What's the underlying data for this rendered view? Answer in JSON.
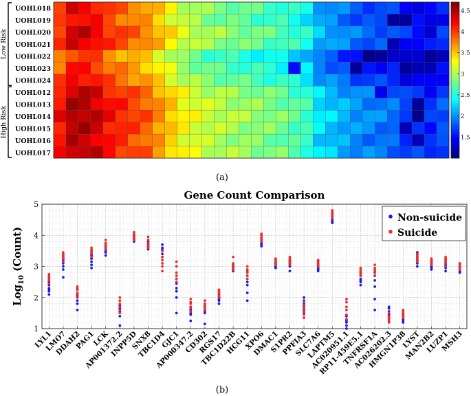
{
  "chart_data": [
    {
      "type": "heatmap",
      "panel_label": "(a)",
      "rows": [
        "UOHL018",
        "UOHL019",
        "UOHL020",
        "UOHL021",
        "UOHL022",
        "UOHL023",
        "UOHL024",
        "UOHL012",
        "UOHL013",
        "UOHL014",
        "UOHL015",
        "UOHL016",
        "UOHL017"
      ],
      "groups": [
        {
          "label": "Low Risk",
          "rows": [
            "UOHL018",
            "UOHL019",
            "UOHL020",
            "UOHL021",
            "UOHL022",
            "UOHL023",
            "UOHL024"
          ]
        },
        {
          "label": "High Risk",
          "rows": [
            "UOHL012",
            "UOHL013",
            "UOHL014",
            "UOHL015",
            "UOHL016",
            "UOHL017"
          ]
        }
      ],
      "n_columns": 32,
      "colorbar": {
        "ticks": [
          "1.5",
          "2",
          "2.5",
          "3",
          "3.5",
          "4",
          "4.5"
        ],
        "range": [
          1.0,
          4.7
        ]
      },
      "column_profile": [
        4.0,
        4.3,
        4.3,
        4.2,
        4.0,
        3.9,
        3.8,
        3.7,
        3.5,
        3.3,
        3.1,
        3.0,
        2.9,
        2.85,
        2.8,
        2.75,
        2.7,
        2.65,
        2.6,
        2.5,
        2.4,
        2.1,
        2.0,
        1.9,
        1.8,
        1.75,
        1.7,
        1.65,
        1.5,
        1.45,
        1.4,
        1.55
      ],
      "row_offsets": [
        0.0,
        -0.05,
        0.1,
        0.05,
        -0.25,
        -0.15,
        -0.05,
        0.15,
        0.2,
        0.25,
        0.2,
        0.15,
        0.2
      ],
      "low_spots": [
        [
          4,
          25,
          1.05
        ],
        [
          4,
          26,
          1.1
        ],
        [
          5,
          24,
          1.1
        ],
        [
          5,
          28,
          1.1
        ],
        [
          1,
          27,
          1.1
        ],
        [
          1,
          28,
          1.1
        ],
        [
          3,
          27,
          1.2
        ],
        [
          8,
          29,
          1.1
        ],
        [
          9,
          29,
          1.05
        ],
        [
          10,
          28,
          1.2
        ],
        [
          11,
          29,
          1.2
        ],
        [
          5,
          19,
          1.5
        ],
        [
          7,
          26,
          1.4
        ],
        [
          2,
          30,
          1.3
        ]
      ]
    },
    {
      "type": "scatter",
      "panel_label": "(b)",
      "title": "Gene Count Comparison",
      "ylabel": "Log10 (Count)",
      "ylabel_main": "Log",
      "ylabel_sub": "10",
      "ylabel_rest": " (Count)",
      "ylim": [
        1,
        5
      ],
      "yticks": [
        "1",
        "2",
        "3",
        "4",
        "5"
      ],
      "legend": {
        "position": "top-right",
        "entries": [
          {
            "name": "Non-suicide",
            "color": "#1c1ce6"
          },
          {
            "name": "Suicide",
            "color": "#e63030"
          }
        ]
      },
      "categories": [
        "LYL1",
        "LMO7",
        "DDAH2",
        "PAG1",
        "LCK",
        "AP001372.2",
        "INPP5D",
        "SNX8",
        "TBC1D4",
        "GJC1",
        "AP000347.2",
        "CD302",
        "RGS17",
        "TBC1D22B",
        "HCG11",
        "XPO6",
        "DMAC1",
        "S1PR2",
        "PPFIA3",
        "SLC7A6",
        "LAPTM5",
        "AC020951.1",
        "RP11-459E5.1",
        "TNFRSF1A",
        "AC026202.3",
        "HMGN1P38",
        "LYST",
        "MAN2B2",
        "LUZP1",
        "MSH3"
      ],
      "series": [
        {
          "name": "Non-suicide",
          "values": [
            [
              2.1,
              2.2,
              2.25,
              2.3,
              2.4,
              2.5
            ],
            [
              2.65,
              2.9,
              3.0,
              3.1,
              3.2,
              3.25
            ],
            [
              1.6,
              1.8,
              1.9,
              2.0,
              2.05,
              2.1
            ],
            [
              2.95,
              3.05,
              3.15,
              3.25,
              3.35,
              3.4
            ],
            [
              3.35,
              3.45,
              3.5,
              3.55,
              3.6,
              3.65
            ],
            [
              1.1,
              1.4,
              1.55,
              1.65,
              1.7,
              1.75
            ],
            [
              3.8,
              3.85,
              3.9,
              3.9,
              3.95,
              4.0
            ],
            [
              3.55,
              3.6,
              3.65,
              3.7,
              3.75,
              3.8
            ],
            [
              3.3,
              3.4,
              3.5,
              3.55,
              3.6,
              3.7
            ],
            [
              1.5,
              2.0,
              2.2,
              2.3,
              2.45,
              2.6
            ],
            [
              1.25,
              1.45,
              1.5,
              1.6,
              1.65,
              1.7
            ],
            [
              1.15,
              1.5,
              1.55,
              1.6,
              1.7,
              1.8
            ],
            [
              1.8,
              1.9,
              1.95,
              2.0,
              2.05,
              2.1
            ],
            [
              2.85,
              2.9,
              2.95,
              3.0,
              3.0,
              3.05
            ],
            [
              1.9,
              2.15,
              2.4,
              2.5,
              2.6,
              2.7
            ],
            [
              3.65,
              3.7,
              3.75,
              3.8,
              3.85,
              3.9
            ],
            [
              2.95,
              3.0,
              3.05,
              3.05,
              3.1,
              3.1
            ],
            [
              2.85,
              3.0,
              3.05,
              3.1,
              3.15,
              3.2
            ],
            [
              1.5,
              1.6,
              1.7,
              1.8,
              1.9,
              2.0
            ],
            [
              2.85,
              2.9,
              2.95,
              3.0,
              3.05,
              3.1
            ],
            [
              4.4,
              4.45,
              4.5,
              4.55,
              4.6,
              4.65
            ],
            [
              1.0,
              1.1,
              1.2,
              1.25,
              1.3,
              1.4
            ],
            [
              2.4,
              2.5,
              2.55,
              2.6,
              2.7,
              2.8
            ],
            [
              1.6,
              1.95,
              2.35,
              2.55,
              2.7,
              2.8
            ],
            [
              1.35,
              1.4,
              1.45,
              1.55,
              1.65,
              1.7
            ],
            [
              1.2,
              1.25,
              1.3,
              1.35,
              1.4,
              1.45
            ],
            [
              3.0,
              3.1,
              3.2,
              3.3,
              3.4,
              3.45
            ],
            [
              2.9,
              2.95,
              3.0,
              3.05,
              3.1,
              3.15
            ],
            [
              2.85,
              2.95,
              3.0,
              3.05,
              3.1,
              3.2
            ],
            [
              2.8,
              2.85,
              2.9,
              2.95,
              3.0,
              3.0
            ]
          ]
        },
        {
          "name": "Suicide",
          "values": [
            [
              2.45,
              2.55,
              2.6,
              2.65,
              2.7,
              2.75
            ],
            [
              3.15,
              3.25,
              3.3,
              3.35,
              3.4,
              3.45
            ],
            [
              2.0,
              2.1,
              2.15,
              2.25,
              2.3,
              2.35
            ],
            [
              3.3,
              3.4,
              3.45,
              3.5,
              3.55,
              3.6
            ],
            [
              3.55,
              3.6,
              3.65,
              3.7,
              3.75,
              3.85
            ],
            [
              1.5,
              1.6,
              1.7,
              1.8,
              1.9,
              2.0
            ],
            [
              3.85,
              3.9,
              3.95,
              4.0,
              4.05,
              4.1
            ],
            [
              3.6,
              3.65,
              3.7,
              3.75,
              3.85,
              3.95
            ],
            [
              2.85,
              3.0,
              3.1,
              3.2,
              3.3,
              3.5
            ],
            [
              2.5,
              2.6,
              2.7,
              2.8,
              3.0,
              3.15
            ],
            [
              1.55,
              1.65,
              1.7,
              1.8,
              1.85,
              1.95
            ],
            [
              1.6,
              1.65,
              1.7,
              1.75,
              1.8,
              1.9
            ],
            [
              2.0,
              2.05,
              2.1,
              2.15,
              2.2,
              2.25
            ],
            [
              2.9,
              2.95,
              3.0,
              3.05,
              3.1,
              3.3
            ],
            [
              2.6,
              2.7,
              2.8,
              2.85,
              2.9,
              3.0
            ],
            [
              3.8,
              3.85,
              3.9,
              3.95,
              4.0,
              4.05
            ],
            [
              3.05,
              3.1,
              3.15,
              3.2,
              3.2,
              3.25
            ],
            [
              3.05,
              3.1,
              3.15,
              3.2,
              3.25,
              3.3
            ],
            [
              1.35,
              1.45,
              1.55,
              1.65,
              1.75,
              1.85
            ],
            [
              3.0,
              3.05,
              3.1,
              3.15,
              3.15,
              3.2
            ],
            [
              4.55,
              4.6,
              4.65,
              4.7,
              4.75,
              4.8
            ],
            [
              1.3,
              1.45,
              1.6,
              1.7,
              1.85,
              1.95
            ],
            [
              2.7,
              2.75,
              2.8,
              2.85,
              2.9,
              2.95
            ],
            [
              2.7,
              2.8,
              2.85,
              2.9,
              2.95,
              3.05
            ],
            [
              1.2,
              1.25,
              1.3,
              1.35,
              1.4,
              1.5
            ],
            [
              1.35,
              1.4,
              1.45,
              1.5,
              1.55,
              1.6
            ],
            [
              3.15,
              3.2,
              3.25,
              3.3,
              3.35,
              3.4
            ],
            [
              3.05,
              3.1,
              3.15,
              3.2,
              3.2,
              3.25
            ],
            [
              3.0,
              3.1,
              3.15,
              3.2,
              3.25,
              3.3
            ],
            [
              2.9,
              2.95,
              3.0,
              3.05,
              3.1,
              3.1
            ]
          ]
        }
      ]
    }
  ]
}
